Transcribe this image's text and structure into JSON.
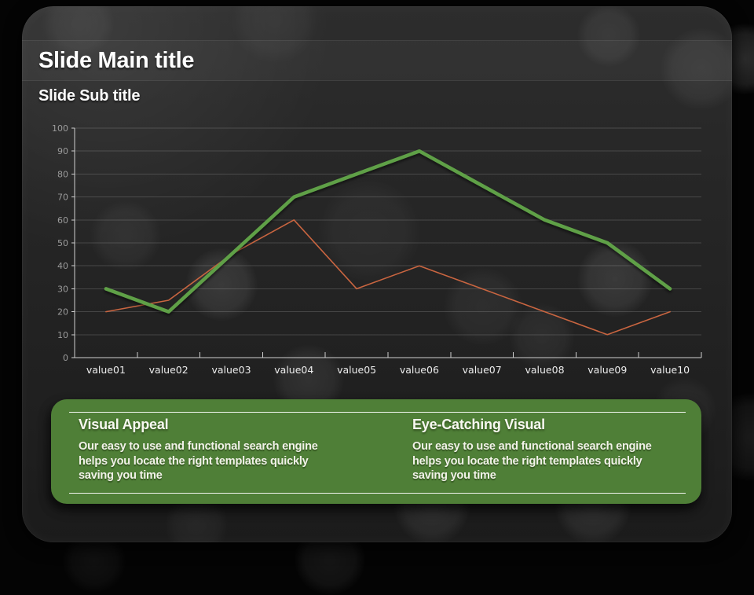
{
  "slide": {
    "title": "Slide Main title",
    "subtitle": "Slide Sub title"
  },
  "chart_data": {
    "type": "line",
    "title": "",
    "xlabel": "",
    "ylabel": "",
    "categories": [
      "value01",
      "value02",
      "value03",
      "value04",
      "value05",
      "value06",
      "value07",
      "value08",
      "value09",
      "value10"
    ],
    "series": [
      {
        "name": "green-series",
        "color": "#5fa046",
        "stroke_width": 4.5,
        "values": [
          30,
          20,
          45,
          70,
          80,
          90,
          75,
          60,
          50,
          30
        ]
      },
      {
        "name": "orange-series",
        "color": "#c96540",
        "stroke_width": 1.6,
        "values": [
          20,
          25,
          45,
          60,
          30,
          40,
          30,
          20,
          10,
          20
        ]
      }
    ],
    "ylim": [
      0,
      100
    ],
    "ytick_step": 10,
    "grid": true,
    "legend": "none",
    "axis_color": "#cfcfcf",
    "grid_color": "rgba(255,255,255,0.16)",
    "y_tick_label_color": "#9b9b9b",
    "x_tick_label_color": "#ededed"
  },
  "info_panel": {
    "background_color": "#4f7f37",
    "items": [
      {
        "title": "Visual Appeal",
        "body": "Our easy to use and functional search engine helps you locate the right templates quickly saving you time"
      },
      {
        "title": "Eye-Catching Visual",
        "body": "Our easy to use and functional search engine helps you locate the right templates quickly saving you time"
      }
    ]
  }
}
